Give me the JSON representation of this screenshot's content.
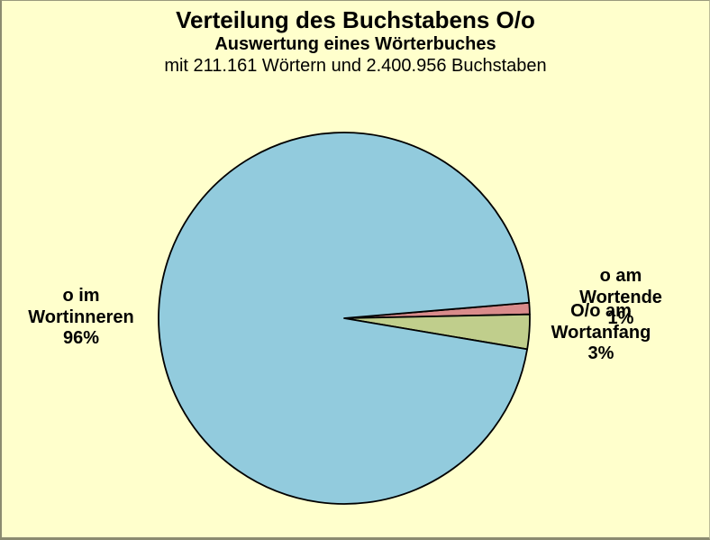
{
  "chart_data": {
    "type": "pie",
    "title": "Verteilung des Buchstabens O/o",
    "subtitle": "Auswertung eines Wörterbuches",
    "note": "mit 211.161 Wörtern und 2.400.956 Buchstaben",
    "start_angle_deg": 4.8,
    "direction": "clockwise",
    "legend": "none",
    "background_color": "#ffffcc",
    "outline_color": "#000000",
    "slices": [
      {
        "label": "o am Wortende",
        "value_pct": 1,
        "pct_label": "1%",
        "color": "#d98b8b"
      },
      {
        "label": "O/o am Wortanfang",
        "value_pct": 3,
        "pct_label": "3%",
        "color": "#c0ce8c"
      },
      {
        "label": "o im Wortinneren",
        "value_pct": 96,
        "pct_label": "96%",
        "color": "#92cbdd"
      }
    ]
  }
}
